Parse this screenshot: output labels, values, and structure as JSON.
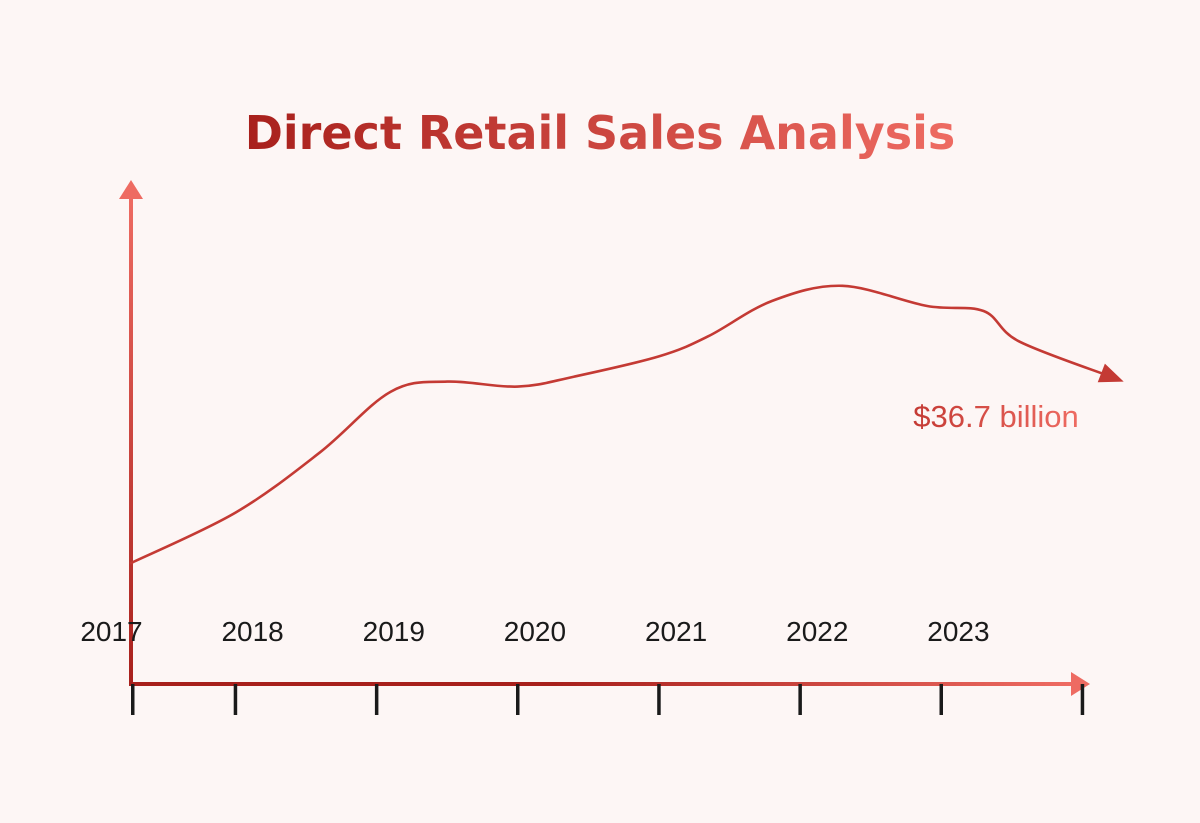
{
  "colors": {
    "background": "#fdf6f5",
    "dark_red": "#a8201c",
    "accent_red": "#c43a34",
    "light_red": "#ee6b62",
    "tick_text": "#1a1a1a"
  },
  "chart_data": {
    "type": "line",
    "title": "Direct Retail Sales Analysis",
    "xlabel": "",
    "ylabel": "",
    "categories": [
      "2017",
      "2018",
      "2019",
      "2020",
      "2021",
      "2022",
      "2023"
    ],
    "x_range": [
      2016.26,
      2024.0
    ],
    "y_range": [
      0,
      100
    ],
    "grid": false,
    "legend": "none",
    "series": [
      {
        "points": [
          {
            "x": 2016.26,
            "y": 24
          },
          {
            "x": 2017.0,
            "y": 34
          },
          {
            "x": 2017.6,
            "y": 46
          },
          {
            "x": 2018.1,
            "y": 58
          },
          {
            "x": 2018.5,
            "y": 60
          },
          {
            "x": 2019.0,
            "y": 59
          },
          {
            "x": 2019.4,
            "y": 61
          },
          {
            "x": 2020.0,
            "y": 65
          },
          {
            "x": 2020.35,
            "y": 69
          },
          {
            "x": 2020.8,
            "y": 76
          },
          {
            "x": 2021.3,
            "y": 79
          },
          {
            "x": 2021.9,
            "y": 75
          },
          {
            "x": 2022.3,
            "y": 74
          },
          {
            "x": 2022.55,
            "y": 68
          },
          {
            "x": 2023.2,
            "y": 61
          }
        ]
      }
    ],
    "annotations": [
      {
        "text": "$36.7 billion",
        "x": 2023.2,
        "y": 61
      }
    ]
  }
}
